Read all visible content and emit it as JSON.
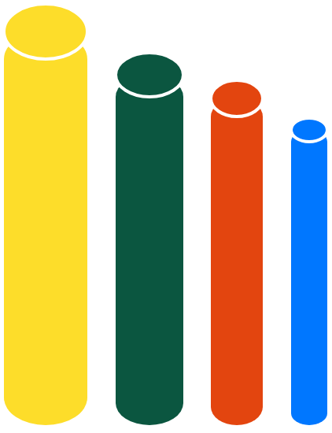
{
  "chart_data": {
    "type": "bar",
    "categories": [
      null,
      null,
      null,
      null
    ],
    "values": [
      100,
      89,
      83,
      75
    ],
    "colors": [
      "#fddd2a",
      "#0b5640",
      "#e3450f",
      "#0077ff"
    ],
    "ylim": [
      0,
      100
    ],
    "tick_labels": false
  }
}
